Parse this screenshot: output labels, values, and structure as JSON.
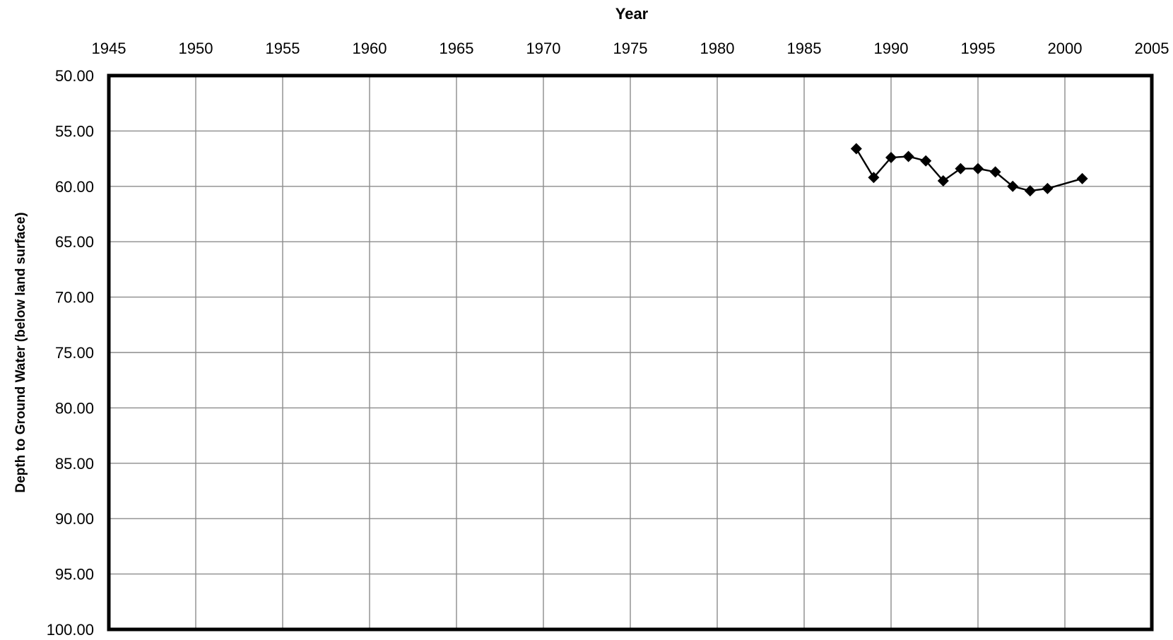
{
  "chart_data": {
    "type": "line",
    "title": "",
    "xlabel": "Year",
    "ylabel": "Depth to Ground Water (below land surface)",
    "xlim": [
      1945,
      2005
    ],
    "ylim": [
      50,
      100
    ],
    "y_inverted": true,
    "x_axis_position": "top",
    "grid": true,
    "x_ticks": [
      "1945",
      "1950",
      "1955",
      "1960",
      "1965",
      "1970",
      "1975",
      "1980",
      "1985",
      "1990",
      "1995",
      "2000",
      "2005"
    ],
    "y_ticks": [
      "50.00",
      "55.00",
      "60.00",
      "65.00",
      "70.00",
      "75.00",
      "80.00",
      "85.00",
      "90.00",
      "95.00",
      "100.00"
    ],
    "marker": "diamond",
    "line_color": "#000000",
    "series": [
      {
        "x": [
          1988,
          1989,
          1990,
          1991,
          1992,
          1993,
          1994,
          1995,
          1996,
          1997,
          1998,
          1999,
          2001
        ],
        "y": [
          56.6,
          59.2,
          57.4,
          57.3,
          57.7,
          59.5,
          58.4,
          58.4,
          58.7,
          60.0,
          60.4,
          60.2,
          59.3
        ]
      }
    ]
  }
}
